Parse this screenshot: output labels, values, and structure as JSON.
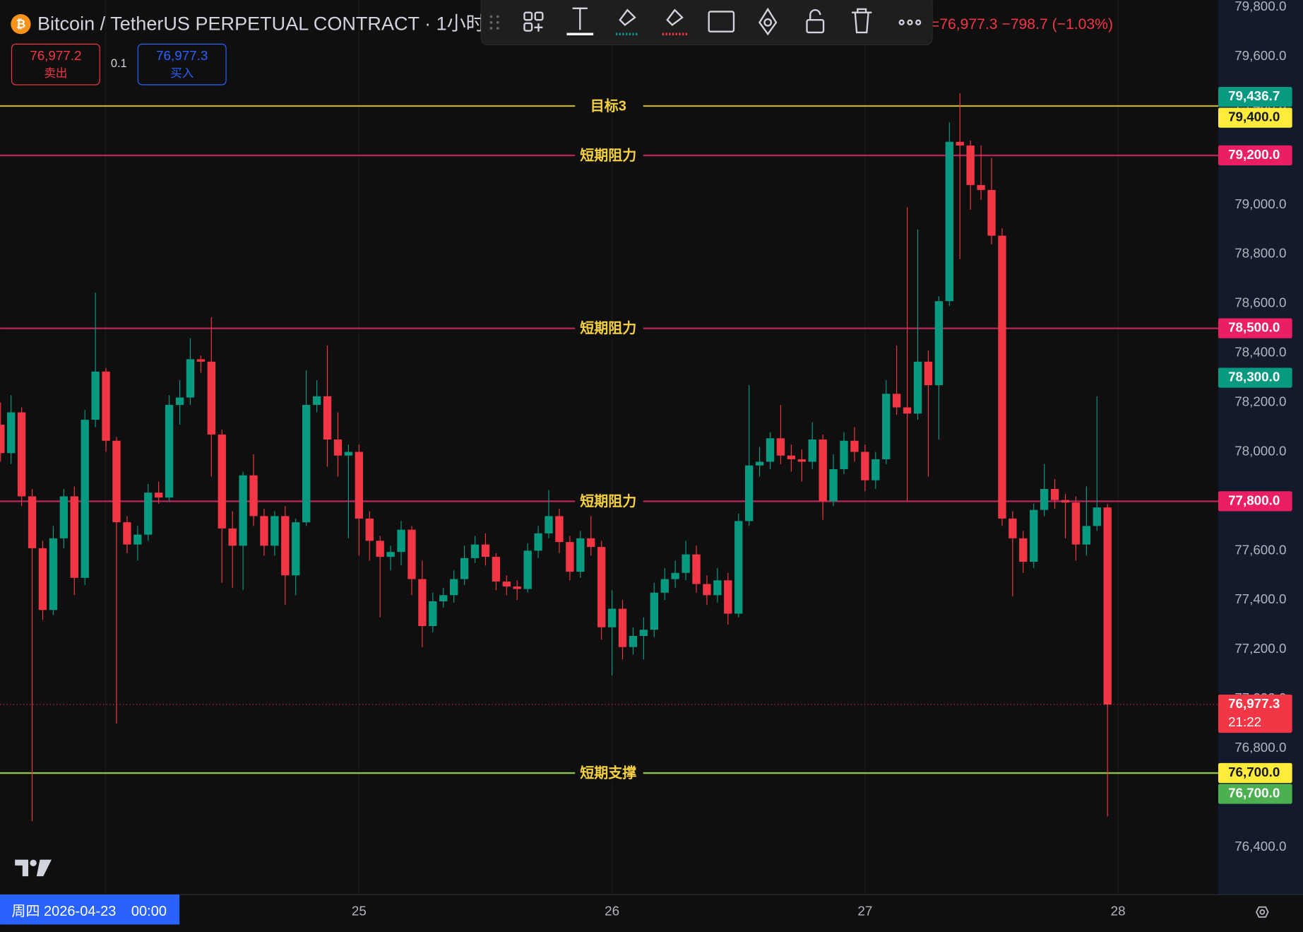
{
  "header": {
    "symbol": "Bitcoin / TetherUS PERPETUAL CONTRACT · 1小时 ·",
    "change": "=76,977.3  −798.7 (−1.03%)",
    "sell_price": "76,977.2",
    "sell": "卖出",
    "qty": "0.1",
    "buy_price": "76,977.3",
    "buy": "买入",
    "crosshair_day": "周四 2026-04-23",
    "crosshair_time": "00:00"
  },
  "chart_data": {
    "type": "candlestick",
    "up_color": "#089981",
    "down_color": "#f23645",
    "grid": true,
    "ylim": [
      76208,
      79829
    ],
    "yticks": [
      {
        "value": 76400,
        "label": "76,400.0"
      },
      {
        "value": 76600,
        "label": "76,600.0"
      },
      {
        "value": 76800,
        "label": "76,800.0"
      },
      {
        "value": 77000,
        "label": "77,000.0"
      },
      {
        "value": 77200,
        "label": "77,200.0"
      },
      {
        "value": 77400,
        "label": "77,400.0"
      },
      {
        "value": 77600,
        "label": "77,600.0"
      },
      {
        "value": 77800,
        "label": "77,800.0"
      },
      {
        "value": 78000,
        "label": "78,000.0"
      },
      {
        "value": 78200,
        "label": "78,200.0"
      },
      {
        "value": 78400,
        "label": "78,400.0"
      },
      {
        "value": 78600,
        "label": "78,600.0"
      },
      {
        "value": 78800,
        "label": "78,800.0"
      },
      {
        "value": 79000,
        "label": "79,000.0"
      },
      {
        "value": 79200,
        "label": "79,200.0"
      },
      {
        "value": 79400,
        "label": "79,400.0"
      },
      {
        "value": 79600,
        "label": "79,600.0"
      },
      {
        "value": 79800,
        "label": "79,800.0"
      }
    ],
    "xlim": [
      -0.05,
      115.5
    ],
    "xticks": [
      {
        "value": 34,
        "label": "25"
      },
      {
        "value": 58,
        "label": "26"
      },
      {
        "value": 82,
        "label": "27"
      },
      {
        "value": 106,
        "label": "28"
      }
    ],
    "open": [
      78110,
      77995,
      78160,
      77820,
      77610,
      77360,
      77650,
      77820,
      77490,
      78130,
      78325,
      78045,
      77715,
      77625,
      77665,
      77835,
      77815,
      78190,
      78220,
      78375,
      78365,
      78070,
      77690,
      77620,
      77905,
      77740,
      77620,
      77740,
      77500,
      77715,
      78190,
      78225,
      78050,
      77985,
      78000,
      77730,
      77640,
      77575,
      77595,
      77685,
      77485,
      77295,
      77395,
      77420,
      77485,
      77570,
      77625,
      77575,
      77475,
      77455,
      77445,
      77600,
      77670,
      77740,
      77635,
      77515,
      77650,
      77615,
      77290,
      77365,
      77210,
      77255,
      77280,
      77430,
      77485,
      77510,
      77585,
      77465,
      77420,
      77480,
      77345,
      77720,
      77945,
      77960,
      78055,
      77985,
      77970,
      77960,
      78050,
      77800,
      77930,
      78045,
      78000,
      77885,
      77970,
      78235,
      78180,
      78155,
      78365,
      78270,
      78610,
      79255,
      79240,
      79080,
      79060,
      78875,
      77730,
      77650,
      77555,
      77765,
      77850,
      77805,
      77795,
      77625,
      77700,
      77775
    ],
    "high": [
      78200,
      78230,
      78180,
      77850,
      77640,
      77700,
      77850,
      77860,
      78170,
      78645,
      78340,
      78060,
      77740,
      77700,
      77870,
      77880,
      78230,
      78290,
      78460,
      78390,
      78545,
      78090,
      77760,
      77920,
      77990,
      77770,
      77760,
      77780,
      77730,
      78330,
      78290,
      78430,
      78160,
      78030,
      78030,
      77760,
      77660,
      77620,
      77720,
      77700,
      77560,
      77430,
      77450,
      77520,
      77620,
      77660,
      77670,
      77590,
      77500,
      77480,
      77630,
      77700,
      77845,
      77770,
      77660,
      77680,
      77740,
      77640,
      77440,
      77400,
      77290,
      77330,
      77470,
      77530,
      77560,
      77640,
      77620,
      77500,
      77530,
      77510,
      77750,
      78270,
      78020,
      78080,
      78190,
      78030,
      78010,
      78120,
      78070,
      77990,
      78080,
      78100,
      78030,
      78000,
      78290,
      78430,
      78990,
      78900,
      78410,
      78630,
      79334,
      79452,
      79260,
      79240,
      79190,
      78905,
      77760,
      77680,
      77790,
      77950,
      77890,
      77830,
      77820,
      77860,
      78225,
      77790
    ],
    "low": [
      77960,
      77950,
      77780,
      76505,
      77320,
      77340,
      77610,
      77420,
      77460,
      78100,
      78000,
      76900,
      77590,
      77560,
      77640,
      77790,
      77800,
      78110,
      78190,
      78320,
      77900,
      77470,
      77450,
      77440,
      77700,
      77580,
      77580,
      77380,
      77420,
      77700,
      78160,
      77940,
      77900,
      77650,
      77580,
      77560,
      77330,
      77520,
      77540,
      77420,
      77210,
      77270,
      77370,
      77390,
      77460,
      77550,
      77540,
      77440,
      77420,
      77400,
      77430,
      77570,
      77650,
      77590,
      77480,
      77490,
      77580,
      77240,
      77095,
      77160,
      77180,
      77160,
      77250,
      77400,
      77450,
      77480,
      77430,
      77380,
      77390,
      77300,
      77330,
      77700,
      77900,
      77930,
      77950,
      77920,
      77880,
      77930,
      77725,
      77780,
      77910,
      77960,
      77840,
      77850,
      77950,
      78150,
      77800,
      78130,
      77900,
      78050,
      78590,
      78780,
      78980,
      79020,
      78840,
      77700,
      77415,
      77510,
      77530,
      77740,
      77770,
      77650,
      77560,
      77580,
      77680,
      76525
    ],
    "close": [
      77995,
      78160,
      77820,
      77610,
      77360,
      77650,
      77820,
      77490,
      78130,
      78325,
      78045,
      77715,
      77625,
      77665,
      77835,
      77815,
      78190,
      78220,
      78375,
      78365,
      78070,
      77690,
      77620,
      77905,
      77740,
      77620,
      77740,
      77500,
      77715,
      78190,
      78225,
      78050,
      77985,
      78000,
      77730,
      77640,
      77575,
      77595,
      77685,
      77485,
      77295,
      77395,
      77420,
      77485,
      77570,
      77625,
      77575,
      77475,
      77455,
      77445,
      77600,
      77670,
      77740,
      77635,
      77515,
      77650,
      77615,
      77290,
      77365,
      77210,
      77255,
      77280,
      77430,
      77485,
      77510,
      77585,
      77465,
      77420,
      77480,
      77345,
      77720,
      77945,
      77960,
      78055,
      77985,
      77970,
      77960,
      78050,
      77800,
      77930,
      78045,
      78000,
      77885,
      77970,
      78235,
      78180,
      78155,
      78365,
      78270,
      78610,
      79255,
      79240,
      79080,
      79060,
      78875,
      77730,
      77650,
      77555,
      77765,
      77850,
      77805,
      77795,
      77625,
      77700,
      77775,
      76977.3
    ],
    "levels": [
      {
        "name": "目标3",
        "value": 79400,
        "color": "#c3b02a"
      },
      {
        "name": "短期阻力",
        "value": 79200,
        "color": "#b3245a"
      },
      {
        "name": "短期阻力",
        "value": 78500,
        "color": "#b3245a"
      },
      {
        "name": "短期阻力",
        "value": 77800,
        "color": "#b3245a"
      },
      {
        "name": "短期支撑",
        "value": 76700,
        "color": "#8bc34a"
      }
    ],
    "price_tags": [
      {
        "value": 79436.7,
        "label": "79,436.7",
        "color": "#089981",
        "text_color": "#ffffff"
      },
      {
        "value": 79400,
        "label": "79,400.0",
        "color": "#ffeb3b",
        "text_color": "#131722"
      },
      {
        "value": 79200,
        "label": "79,200.0",
        "color": "#e91e63",
        "text_color": "#ffffff"
      },
      {
        "value": 78500,
        "label": "78,500.0",
        "color": "#e91e63",
        "text_color": "#ffffff"
      },
      {
        "value": 78300,
        "label": "78,300.0",
        "color": "#089981",
        "text_color": "#ffffff"
      },
      {
        "value": 77800,
        "label": "77,800.0",
        "color": "#e91e63",
        "text_color": "#ffffff"
      },
      {
        "value": 76977.3,
        "label": "76,977.3",
        "countdown": "21:22",
        "color": "#f23645",
        "text_color": "#ffffff"
      },
      {
        "value": 76700,
        "label": "76,700.0",
        "color": "#ffeb3b",
        "text_color": "#131722"
      },
      {
        "value": 76700,
        "label": "76,700.0",
        "color": "#4caf50",
        "text_color": "#ffffff"
      }
    ]
  }
}
